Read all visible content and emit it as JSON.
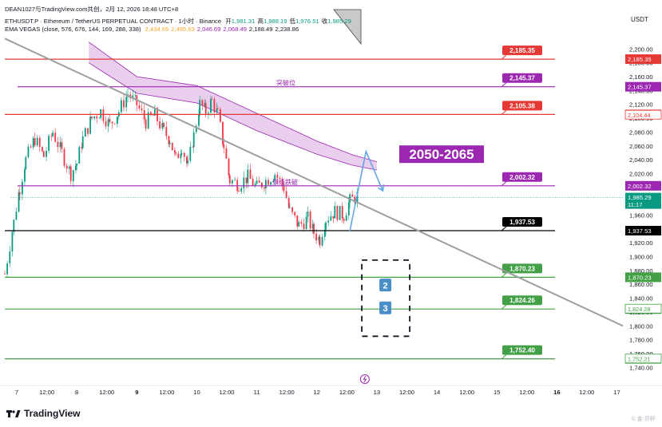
{
  "header": {
    "line1": "DEAN1027与TradingView.com共创，2月 12, 2026 18:48 UTC+8",
    "symbol": "ETHUSDT.P · Ethereum / TetherUS PERPETUAL CONTRACT · 1小时 · Binance",
    "ohlc": [
      {
        "label": "开",
        "value": "1,981.31"
      },
      {
        "label": "高",
        "value": "1,988.19"
      },
      {
        "label": "低",
        "value": "1,976.51"
      },
      {
        "label": "收",
        "value": "1,985.29"
      }
    ],
    "ema_label": "EMA VEGAS (close, 576, 676, 144, 169, 288, 338)",
    "ema_values": [
      {
        "value": "2,434.65",
        "color": "#f5a623"
      },
      {
        "value": "2,495.63",
        "color": "#f5a623"
      },
      {
        "value": "2,046.69",
        "color": "#9c27b0"
      },
      {
        "value": "2,068.49",
        "color": "#9c27b0"
      },
      {
        "value": "2,188.49",
        "color": "#131722"
      },
      {
        "value": "2,238.86",
        "color": "#131722"
      }
    ]
  },
  "brand": "TradingView",
  "watermark": "© 金·贝杯",
  "chart_data": {
    "type": "candlestick",
    "currency": "USDT",
    "ylim": [
      1730,
      2220
    ],
    "y_ticks": [
      "2,200.00",
      "2,180.00",
      "2,160.00",
      "2,140.00",
      "2,120.00",
      "2,100.00",
      "2,080.00",
      "2,060.00",
      "2,040.00",
      "2,020.00",
      "2,000.00",
      "1,980.00",
      "1,960.00",
      "1,940.00",
      "1,920.00",
      "1,900.00",
      "1,880.00",
      "1,860.00",
      "1,840.00",
      "1,820.00",
      "1,800.00",
      "1,780.00",
      "1,760.00",
      "1,740.00"
    ],
    "x_ticks": [
      "7",
      "12:00",
      "8",
      "12:00",
      "9",
      "12:00",
      "10",
      "12:00",
      "11",
      "12:00",
      "12",
      "12:00",
      "13",
      "12:00",
      "14",
      "12:00",
      "15",
      "12:00",
      "16",
      "12:00",
      "17"
    ],
    "x_ticks_bold": [
      "9",
      "16"
    ],
    "time_range_days": [
      6.8,
      17.1
    ],
    "current_price": {
      "value": "1,985.29",
      "countdown": "11:17",
      "price": 1985.29
    },
    "horizontal_levels": [
      {
        "price": 2185.35,
        "label": "2,185.35",
        "color": "#e53935"
      },
      {
        "price": 2145.37,
        "label": "2,145.37",
        "color": "#9c27b0",
        "text": "突破位"
      },
      {
        "price": 2105.38,
        "label": "2,105.38",
        "color": "#e53935"
      },
      {
        "price": 2002.32,
        "label": "2,002.32",
        "color": "#9c27b0",
        "text": "颈线跌破"
      },
      {
        "price": 1937.53,
        "label": "1,937.53",
        "color": "#000000"
      },
      {
        "price": 1870.23,
        "label": "1,870.23",
        "color": "#43a047"
      },
      {
        "price": 1824.26,
        "label": "1,824.26",
        "color": "#43a047"
      },
      {
        "price": 1752.4,
        "label": "1,752.40",
        "color": "#43a047"
      }
    ],
    "axis_markers": [
      {
        "price": 2104.44,
        "label": "2,104.44",
        "color": "#e53935"
      },
      {
        "price": 1824.28,
        "label": "1,824.28",
        "color": "#43a047"
      },
      {
        "price": 1752.21,
        "label": "1,752.21",
        "color": "#43a047"
      }
    ],
    "target_zone_label": "2050-2065",
    "scenario_boxes": [
      "2",
      "3"
    ],
    "trendline": {
      "start": [
        6.8,
        2215
      ],
      "end": [
        17.1,
        1800
      ]
    },
    "ema_band": [
      {
        "t": 8.2,
        "upper": 2210,
        "lower": 2180
      },
      {
        "t": 9.0,
        "upper": 2160,
        "lower": 2136
      },
      {
        "t": 10.0,
        "upper": 2147,
        "lower": 2122
      },
      {
        "t": 11.0,
        "upper": 2107,
        "lower": 2082
      },
      {
        "t": 12.0,
        "upper": 2067,
        "lower": 2048
      },
      {
        "t": 12.6,
        "upper": 2047,
        "lower": 2032
      },
      {
        "t": 13.0,
        "upper": 2037,
        "lower": 2025
      }
    ],
    "price_path": [
      [
        6.8,
        1875
      ],
      [
        6.95,
        1950
      ],
      [
        7.05,
        2000
      ],
      [
        7.15,
        2040
      ],
      [
        7.3,
        2070
      ],
      [
        7.45,
        2045
      ],
      [
        7.6,
        2080
      ],
      [
        7.75,
        2050
      ],
      [
        7.9,
        2020
      ],
      [
        8.0,
        2035
      ],
      [
        8.1,
        2070
      ],
      [
        8.25,
        2100
      ],
      [
        8.4,
        2110
      ],
      [
        8.55,
        2090
      ],
      [
        8.7,
        2110
      ],
      [
        8.85,
        2135
      ],
      [
        9.0,
        2120
      ],
      [
        9.15,
        2095
      ],
      [
        9.3,
        2105
      ],
      [
        9.45,
        2080
      ],
      [
        9.55,
        2070
      ],
      [
        9.65,
        2040
      ],
      [
        9.75,
        2060
      ],
      [
        9.85,
        2030
      ],
      [
        9.95,
        2075
      ],
      [
        10.05,
        2120
      ],
      [
        10.15,
        2110
      ],
      [
        10.25,
        2125
      ],
      [
        10.35,
        2105
      ],
      [
        10.45,
        2060
      ],
      [
        10.55,
        2010
      ],
      [
        10.7,
        2005
      ],
      [
        10.85,
        2015
      ],
      [
        11.0,
        2000
      ],
      [
        11.15,
        2010
      ],
      [
        11.3,
        2020
      ],
      [
        11.45,
        2000
      ],
      [
        11.55,
        1965
      ],
      [
        11.7,
        1945
      ],
      [
        11.85,
        1955
      ],
      [
        11.95,
        1935
      ],
      [
        12.05,
        1925
      ],
      [
        12.15,
        1955
      ],
      [
        12.3,
        1965
      ],
      [
        12.45,
        1960
      ],
      [
        12.55,
        1980
      ],
      [
        12.7,
        1990
      ]
    ]
  }
}
